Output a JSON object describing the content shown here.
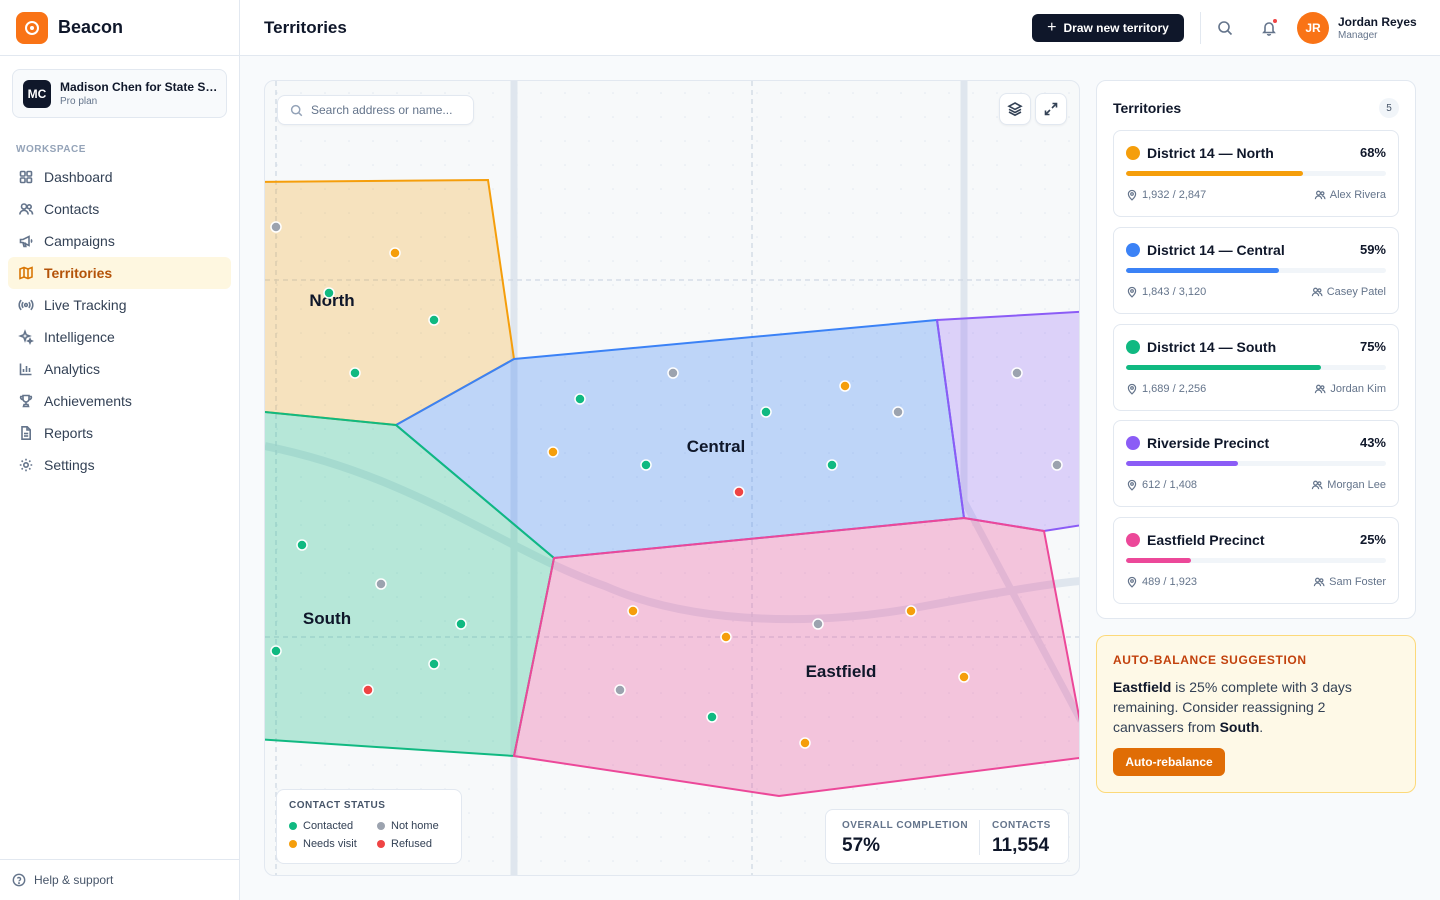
{
  "app": {
    "brand": "Beacon",
    "page_title": "Territories"
  },
  "org": {
    "initials": "MC",
    "name": "Madison Chen for State Senate",
    "plan": "Pro plan"
  },
  "sidebar": {
    "section_label": "WORKSPACE",
    "items": [
      {
        "label": "Dashboard",
        "icon": "grid-icon",
        "active": false
      },
      {
        "label": "Contacts",
        "icon": "users-icon",
        "active": false
      },
      {
        "label": "Campaigns",
        "icon": "megaphone-icon",
        "active": false
      },
      {
        "label": "Territories",
        "icon": "map-icon",
        "active": true
      },
      {
        "label": "Live Tracking",
        "icon": "broadcast-icon",
        "active": false
      },
      {
        "label": "Intelligence",
        "icon": "sparkles-icon",
        "active": false
      },
      {
        "label": "Analytics",
        "icon": "bar-chart-icon",
        "active": false
      },
      {
        "label": "Achievements",
        "icon": "trophy-icon",
        "active": false
      },
      {
        "label": "Reports",
        "icon": "file-icon",
        "active": false
      },
      {
        "label": "Settings",
        "icon": "gear-icon",
        "active": false
      }
    ],
    "help_label": "Help & support"
  },
  "header": {
    "draw_button": "Draw new territory",
    "user": {
      "initials": "JR",
      "name": "Jordan Reyes",
      "role": "Manager"
    }
  },
  "map": {
    "search_placeholder": "Search address or name...",
    "regions": [
      {
        "label": "North",
        "color": "#f59e0b"
      },
      {
        "label": "Central",
        "color": "#3b82f6"
      },
      {
        "label": "South",
        "color": "#10b981"
      },
      {
        "label": "Eastfield",
        "color": "#ec4899"
      },
      {
        "label": "",
        "color": "#8b5cf6"
      }
    ],
    "legend": {
      "title": "CONTACT STATUS",
      "items": [
        {
          "label": "Contacted",
          "color": "#10b981"
        },
        {
          "label": "Not home",
          "color": "#9ca3af"
        },
        {
          "label": "Needs visit",
          "color": "#f59e0b"
        },
        {
          "label": "Refused",
          "color": "#ef4444"
        }
      ]
    },
    "stats": {
      "completion_label": "OVERALL COMPLETION",
      "completion_value": "57%",
      "contacts_label": "CONTACTS",
      "contacts_value": "11,554"
    }
  },
  "territories": {
    "title": "Territories",
    "count": "5",
    "items": [
      {
        "name": "District 14 — North",
        "pct": "68%",
        "progress": 0.68,
        "count": "1,932 / 2,847",
        "owner": "Alex Rivera",
        "color": "#f59e0b"
      },
      {
        "name": "District 14 — Central",
        "pct": "59%",
        "progress": 0.59,
        "count": "1,843 / 3,120",
        "owner": "Casey Patel",
        "color": "#3b82f6"
      },
      {
        "name": "District 14 — South",
        "pct": "75%",
        "progress": 0.75,
        "count": "1,689 / 2,256",
        "owner": "Jordan Kim",
        "color": "#10b981"
      },
      {
        "name": "Riverside Precinct",
        "pct": "43%",
        "progress": 0.43,
        "count": "612 / 1,408",
        "owner": "Morgan Lee",
        "color": "#8b5cf6"
      },
      {
        "name": "Eastfield Precinct",
        "pct": "25%",
        "progress": 0.25,
        "count": "489 / 1,923",
        "owner": "Sam Foster",
        "color": "#ec4899"
      }
    ]
  },
  "suggestion": {
    "title": "AUTO-BALANCE SUGGESTION",
    "target": "Eastfield",
    "text_mid": " is 25% complete with 3 days remaining. Consider reassigning 2 canvassers from ",
    "source": "South",
    "text_end": ".",
    "button": "Auto-rebalance"
  }
}
